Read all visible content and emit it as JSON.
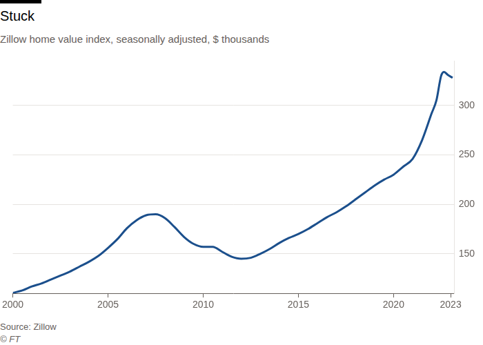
{
  "chart_data": {
    "type": "line",
    "title": "Stuck",
    "subtitle": "Zillow home value index, seasonally adjusted, $ thousands",
    "source": "Source: Zillow",
    "credit": "© FT",
    "color": "#1b4f8c",
    "grid": true,
    "x": [
      2000,
      2000.5,
      2001,
      2001.5,
      2002,
      2002.5,
      2003,
      2003.5,
      2004,
      2004.5,
      2005,
      2005.5,
      2006,
      2006.5,
      2007,
      2007.5,
      2008,
      2008.5,
      2009,
      2009.5,
      2010,
      2010.5,
      2011,
      2011.5,
      2012,
      2012.5,
      2013,
      2013.5,
      2014,
      2014.5,
      2015,
      2015.5,
      2016,
      2016.5,
      2017,
      2017.5,
      2018,
      2018.5,
      2019,
      2019.5,
      2020,
      2020.5,
      2021,
      2021.5,
      2022,
      2022.25,
      2022.5,
      2022.65,
      2022.85,
      2023.1
    ],
    "values": [
      110.5,
      113,
      117,
      120,
      124,
      128,
      132,
      137,
      142,
      148,
      156,
      165,
      176,
      184,
      189,
      190,
      186,
      177,
      167,
      160,
      157,
      157,
      152,
      147,
      145,
      146,
      150,
      155,
      161,
      166,
      170,
      175,
      181,
      187,
      192,
      198,
      205,
      212,
      219,
      225,
      230,
      238,
      246,
      265,
      292,
      305,
      330,
      334,
      331,
      328
    ],
    "xlim": [
      2000,
      2023.2
    ],
    "xticks": [
      2000,
      2005,
      2010,
      2015,
      2020,
      2023
    ],
    "ylim": [
      110,
      345
    ],
    "yticks": [
      150,
      200,
      250,
      300
    ]
  }
}
